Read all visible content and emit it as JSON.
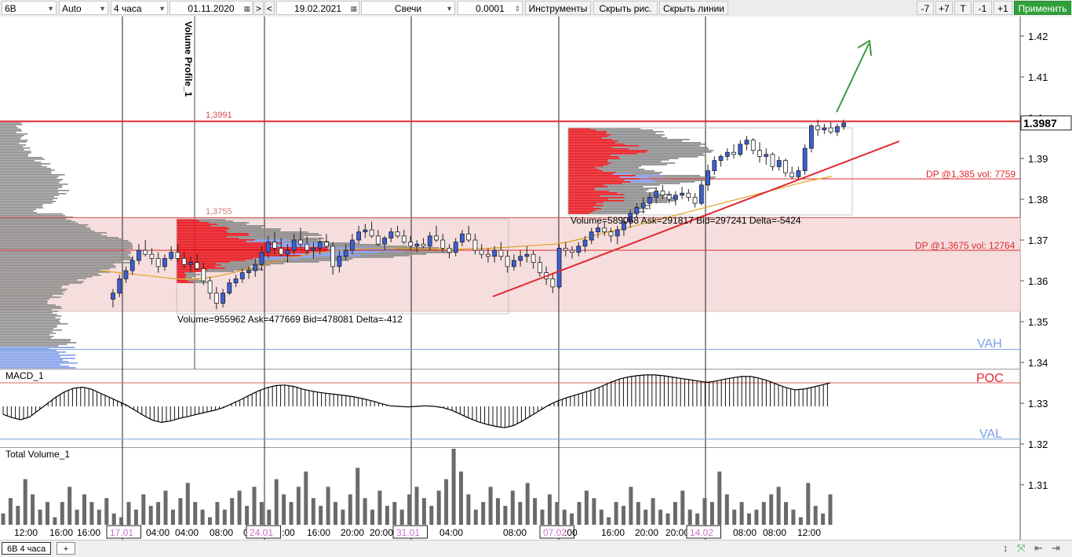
{
  "toolbar": {
    "symbol": "6B",
    "scale": "Auto",
    "timeframe": "4 часа",
    "date_from": "01.11.2020",
    "nav_fwd": ">",
    "nav_back": "<",
    "date_to": "19.02.2021",
    "chart_type": "Свечи",
    "tick_size": "0.0001",
    "instruments": "Инструменты",
    "hide_drawings": "Скрыть рис.",
    "hide_lines": "Скрыть линии",
    "zoom_out7": "-7",
    "zoom_in7": "+7",
    "t_button": "T",
    "minus1": "-1",
    "plus1": "+1",
    "apply": "Применить"
  },
  "bottom": {
    "tab": "6B 4 часа",
    "add_tab": "+"
  },
  "colors": {
    "candle_up": "#3b5fd6",
    "candle_down": "#222222",
    "resistance": "#e0282f",
    "zone_fill": "#f5dedd",
    "ema": "#e0a020",
    "profile_gray": "#8a8a8a",
    "profile_red": "#e8141c",
    "profile_blue": "#7f9be8",
    "trend_arrow": "#3a9a3c",
    "vah_val": "#7aa0e0",
    "apply_green": "#2fa13b"
  },
  "chart_data": {
    "type": "candlestick",
    "symbol": "6B",
    "timeframe": "4 часа",
    "price_axis": {
      "ticks": [
        1.42,
        1.41,
        1.4,
        1.39,
        1.38,
        1.37,
        1.36,
        1.35,
        1.34,
        1.33,
        1.32,
        1.31
      ],
      "tick_labels": [
        "1.42",
        "1.41",
        "1.4",
        "1.39",
        "1.38",
        "1.37",
        "1.36",
        "1.35",
        "1.34",
        "1.33",
        "1.32",
        "1.31"
      ],
      "current_price": "1.3987",
      "range": [
        1.3,
        1.4248
      ]
    },
    "time_axis_labels": [
      "12:00",
      "16:00",
      "16:00",
      "17.01",
      "04:00",
      "04:00",
      "08:00",
      "08:00",
      "24.01",
      ":00",
      "16:00",
      "20:00",
      "20:00",
      "31.01",
      "04:00",
      "08:00",
      "07.02",
      ":00",
      "16:00",
      "20:00",
      "20:00",
      "14.02",
      "08:00",
      "08:00",
      "12:00"
    ],
    "levels": [
      {
        "label": "1,3991",
        "price": 1.3991
      },
      {
        "label": "1,3755",
        "price": 1.3755
      },
      {
        "label": "DP @1,385 vol: 7759",
        "price": 1.385
      },
      {
        "label": "DP @1,3675 vol: 12764",
        "price": 1.3675
      },
      {
        "label": "VAH",
        "price": 1.3432
      },
      {
        "label": "POC",
        "price": 1.335
      },
      {
        "label": "VAL",
        "price": 1.3212
      }
    ],
    "zone": {
      "top": 1.3755,
      "bottom": 1.3525
    },
    "volume_profiles": [
      {
        "label": "Volume=955962  Ask=477669  Bid=478081  Delta=-412"
      },
      {
        "label": "Volume=589058  Ask=291817  Bid=297241  Delta=-5424"
      }
    ],
    "candles": [
      {
        "o": 1.3555,
        "h": 1.358,
        "l": 1.3535,
        "c": 1.357
      },
      {
        "o": 1.357,
        "h": 1.3615,
        "l": 1.356,
        "c": 1.3605
      },
      {
        "o": 1.3605,
        "h": 1.3635,
        "l": 1.3595,
        "c": 1.3625
      },
      {
        "o": 1.3625,
        "h": 1.366,
        "l": 1.3615,
        "c": 1.365
      },
      {
        "o": 1.365,
        "h": 1.369,
        "l": 1.364,
        "c": 1.3675
      },
      {
        "o": 1.3675,
        "h": 1.37,
        "l": 1.366,
        "c": 1.3665
      },
      {
        "o": 1.3665,
        "h": 1.368,
        "l": 1.364,
        "c": 1.3655
      },
      {
        "o": 1.3655,
        "h": 1.367,
        "l": 1.362,
        "c": 1.3635
      },
      {
        "o": 1.3635,
        "h": 1.3665,
        "l": 1.3625,
        "c": 1.3655
      },
      {
        "o": 1.3655,
        "h": 1.3685,
        "l": 1.365,
        "c": 1.367
      },
      {
        "o": 1.367,
        "h": 1.369,
        "l": 1.3645,
        "c": 1.3655
      },
      {
        "o": 1.3655,
        "h": 1.367,
        "l": 1.363,
        "c": 1.364
      },
      {
        "o": 1.364,
        "h": 1.366,
        "l": 1.362,
        "c": 1.3645
      },
      {
        "o": 1.3645,
        "h": 1.3665,
        "l": 1.3625,
        "c": 1.363
      },
      {
        "o": 1.363,
        "h": 1.3645,
        "l": 1.359,
        "c": 1.36
      },
      {
        "o": 1.36,
        "h": 1.361,
        "l": 1.3555,
        "c": 1.357
      },
      {
        "o": 1.357,
        "h": 1.3585,
        "l": 1.353,
        "c": 1.3545
      },
      {
        "o": 1.3545,
        "h": 1.358,
        "l": 1.3535,
        "c": 1.357
      },
      {
        "o": 1.357,
        "h": 1.3605,
        "l": 1.3565,
        "c": 1.3595
      },
      {
        "o": 1.3595,
        "h": 1.3615,
        "l": 1.3585,
        "c": 1.3605
      },
      {
        "o": 1.3605,
        "h": 1.363,
        "l": 1.3595,
        "c": 1.362
      },
      {
        "o": 1.362,
        "h": 1.3635,
        "l": 1.3605,
        "c": 1.3625
      },
      {
        "o": 1.3625,
        "h": 1.3655,
        "l": 1.361,
        "c": 1.364
      },
      {
        "o": 1.364,
        "h": 1.3685,
        "l": 1.3625,
        "c": 1.367
      },
      {
        "o": 1.367,
        "h": 1.371,
        "l": 1.3655,
        "c": 1.3695
      },
      {
        "o": 1.3695,
        "h": 1.372,
        "l": 1.3665,
        "c": 1.368
      },
      {
        "o": 1.368,
        "h": 1.3705,
        "l": 1.366,
        "c": 1.3665
      },
      {
        "o": 1.3665,
        "h": 1.369,
        "l": 1.3645,
        "c": 1.3675
      },
      {
        "o": 1.3675,
        "h": 1.3715,
        "l": 1.3665,
        "c": 1.37
      },
      {
        "o": 1.37,
        "h": 1.373,
        "l": 1.368,
        "c": 1.369
      },
      {
        "o": 1.369,
        "h": 1.371,
        "l": 1.3665,
        "c": 1.3675
      },
      {
        "o": 1.3675,
        "h": 1.3695,
        "l": 1.3655,
        "c": 1.368
      },
      {
        "o": 1.368,
        "h": 1.3705,
        "l": 1.3665,
        "c": 1.3695
      },
      {
        "o": 1.3695,
        "h": 1.3715,
        "l": 1.368,
        "c": 1.3685
      },
      {
        "o": 1.3685,
        "h": 1.3695,
        "l": 1.3615,
        "c": 1.3635
      },
      {
        "o": 1.3635,
        "h": 1.3675,
        "l": 1.362,
        "c": 1.366
      },
      {
        "o": 1.366,
        "h": 1.369,
        "l": 1.365,
        "c": 1.3675
      },
      {
        "o": 1.3675,
        "h": 1.3715,
        "l": 1.3665,
        "c": 1.37
      },
      {
        "o": 1.37,
        "h": 1.3735,
        "l": 1.369,
        "c": 1.372
      },
      {
        "o": 1.372,
        "h": 1.374,
        "l": 1.3705,
        "c": 1.3725
      },
      {
        "o": 1.3725,
        "h": 1.3745,
        "l": 1.3705,
        "c": 1.371
      },
      {
        "o": 1.371,
        "h": 1.3725,
        "l": 1.3685,
        "c": 1.369
      },
      {
        "o": 1.369,
        "h": 1.371,
        "l": 1.3675,
        "c": 1.3705
      },
      {
        "o": 1.3705,
        "h": 1.373,
        "l": 1.3695,
        "c": 1.372
      },
      {
        "o": 1.372,
        "h": 1.3735,
        "l": 1.3705,
        "c": 1.371
      },
      {
        "o": 1.371,
        "h": 1.3725,
        "l": 1.369,
        "c": 1.3695
      },
      {
        "o": 1.3695,
        "h": 1.371,
        "l": 1.3675,
        "c": 1.3685
      },
      {
        "o": 1.3685,
        "h": 1.37,
        "l": 1.367,
        "c": 1.369
      },
      {
        "o": 1.369,
        "h": 1.3705,
        "l": 1.368,
        "c": 1.3685
      },
      {
        "o": 1.3685,
        "h": 1.372,
        "l": 1.3675,
        "c": 1.371
      },
      {
        "o": 1.371,
        "h": 1.3735,
        "l": 1.3695,
        "c": 1.37
      },
      {
        "o": 1.37,
        "h": 1.3715,
        "l": 1.367,
        "c": 1.368
      },
      {
        "o": 1.368,
        "h": 1.369,
        "l": 1.3655,
        "c": 1.367
      },
      {
        "o": 1.367,
        "h": 1.3705,
        "l": 1.366,
        "c": 1.3695
      },
      {
        "o": 1.3695,
        "h": 1.3725,
        "l": 1.3685,
        "c": 1.3715
      },
      {
        "o": 1.3715,
        "h": 1.3735,
        "l": 1.3695,
        "c": 1.37
      },
      {
        "o": 1.37,
        "h": 1.3715,
        "l": 1.3665,
        "c": 1.3675
      },
      {
        "o": 1.3675,
        "h": 1.369,
        "l": 1.3655,
        "c": 1.3665
      },
      {
        "o": 1.3665,
        "h": 1.368,
        "l": 1.3645,
        "c": 1.366
      },
      {
        "o": 1.366,
        "h": 1.3685,
        "l": 1.3645,
        "c": 1.3675
      },
      {
        "o": 1.3675,
        "h": 1.3695,
        "l": 1.365,
        "c": 1.366
      },
      {
        "o": 1.366,
        "h": 1.3675,
        "l": 1.362,
        "c": 1.3635
      },
      {
        "o": 1.3635,
        "h": 1.3665,
        "l": 1.3625,
        "c": 1.365
      },
      {
        "o": 1.365,
        "h": 1.3675,
        "l": 1.3635,
        "c": 1.366
      },
      {
        "o": 1.366,
        "h": 1.3685,
        "l": 1.3645,
        "c": 1.3665
      },
      {
        "o": 1.3665,
        "h": 1.3675,
        "l": 1.363,
        "c": 1.3645
      },
      {
        "o": 1.3645,
        "h": 1.366,
        "l": 1.361,
        "c": 1.362
      },
      {
        "o": 1.362,
        "h": 1.3635,
        "l": 1.359,
        "c": 1.3605
      },
      {
        "o": 1.3605,
        "h": 1.362,
        "l": 1.357,
        "c": 1.3585
      },
      {
        "o": 1.3585,
        "h": 1.369,
        "l": 1.358,
        "c": 1.368
      },
      {
        "o": 1.368,
        "h": 1.3695,
        "l": 1.366,
        "c": 1.3675
      },
      {
        "o": 1.3675,
        "h": 1.3685,
        "l": 1.3655,
        "c": 1.367
      },
      {
        "o": 1.367,
        "h": 1.3695,
        "l": 1.366,
        "c": 1.3685
      },
      {
        "o": 1.3685,
        "h": 1.371,
        "l": 1.367,
        "c": 1.37
      },
      {
        "o": 1.37,
        "h": 1.373,
        "l": 1.369,
        "c": 1.372
      },
      {
        "o": 1.372,
        "h": 1.374,
        "l": 1.3705,
        "c": 1.373
      },
      {
        "o": 1.373,
        "h": 1.3745,
        "l": 1.371,
        "c": 1.372
      },
      {
        "o": 1.372,
        "h": 1.373,
        "l": 1.3695,
        "c": 1.371
      },
      {
        "o": 1.371,
        "h": 1.3735,
        "l": 1.369,
        "c": 1.3725
      },
      {
        "o": 1.3725,
        "h": 1.3755,
        "l": 1.371,
        "c": 1.3745
      },
      {
        "o": 1.3745,
        "h": 1.3775,
        "l": 1.373,
        "c": 1.3765
      },
      {
        "o": 1.3765,
        "h": 1.379,
        "l": 1.3755,
        "c": 1.378
      },
      {
        "o": 1.378,
        "h": 1.3805,
        "l": 1.3765,
        "c": 1.379
      },
      {
        "o": 1.379,
        "h": 1.3815,
        "l": 1.3775,
        "c": 1.3805
      },
      {
        "o": 1.3805,
        "h": 1.383,
        "l": 1.379,
        "c": 1.382
      },
      {
        "o": 1.382,
        "h": 1.3835,
        "l": 1.38,
        "c": 1.381
      },
      {
        "o": 1.381,
        "h": 1.382,
        "l": 1.379,
        "c": 1.38
      },
      {
        "o": 1.38,
        "h": 1.382,
        "l": 1.3785,
        "c": 1.381
      },
      {
        "o": 1.381,
        "h": 1.383,
        "l": 1.38,
        "c": 1.3815
      },
      {
        "o": 1.3815,
        "h": 1.3825,
        "l": 1.3795,
        "c": 1.3805
      },
      {
        "o": 1.3805,
        "h": 1.3815,
        "l": 1.378,
        "c": 1.379
      },
      {
        "o": 1.379,
        "h": 1.3845,
        "l": 1.3785,
        "c": 1.3835
      },
      {
        "o": 1.3835,
        "h": 1.3885,
        "l": 1.382,
        "c": 1.387
      },
      {
        "o": 1.387,
        "h": 1.3905,
        "l": 1.386,
        "c": 1.3895
      },
      {
        "o": 1.3895,
        "h": 1.391,
        "l": 1.388,
        "c": 1.3905
      },
      {
        "o": 1.3905,
        "h": 1.3925,
        "l": 1.3895,
        "c": 1.3915
      },
      {
        "o": 1.3915,
        "h": 1.3935,
        "l": 1.39,
        "c": 1.391
      },
      {
        "o": 1.391,
        "h": 1.3945,
        "l": 1.3905,
        "c": 1.3935
      },
      {
        "o": 1.3935,
        "h": 1.3955,
        "l": 1.392,
        "c": 1.3945
      },
      {
        "o": 1.3945,
        "h": 1.395,
        "l": 1.391,
        "c": 1.392
      },
      {
        "o": 1.392,
        "h": 1.394,
        "l": 1.389,
        "c": 1.3905
      },
      {
        "o": 1.3905,
        "h": 1.3925,
        "l": 1.3885,
        "c": 1.391
      },
      {
        "o": 1.391,
        "h": 1.3915,
        "l": 1.387,
        "c": 1.388
      },
      {
        "o": 1.388,
        "h": 1.3905,
        "l": 1.387,
        "c": 1.3895
      },
      {
        "o": 1.3895,
        "h": 1.39,
        "l": 1.3855,
        "c": 1.3865
      },
      {
        "o": 1.3865,
        "h": 1.388,
        "l": 1.385,
        "c": 1.3855
      },
      {
        "o": 1.3855,
        "h": 1.388,
        "l": 1.385,
        "c": 1.387
      },
      {
        "o": 1.387,
        "h": 1.3935,
        "l": 1.386,
        "c": 1.3925
      },
      {
        "o": 1.3925,
        "h": 1.3985,
        "l": 1.3915,
        "c": 1.398
      },
      {
        "o": 1.398,
        "h": 1.3995,
        "l": 1.3955,
        "c": 1.397
      },
      {
        "o": 1.397,
        "h": 1.3985,
        "l": 1.396,
        "c": 1.3975
      },
      {
        "o": 1.3975,
        "h": 1.399,
        "l": 1.396,
        "c": 1.3965
      },
      {
        "o": 1.3965,
        "h": 1.3985,
        "l": 1.3955,
        "c": 1.3978
      },
      {
        "o": 1.3978,
        "h": 1.3995,
        "l": 1.397,
        "c": 1.3987
      }
    ],
    "ema": [
      1.3625,
      1.3622,
      1.3618,
      1.3615,
      1.3612,
      1.3608,
      1.3605,
      1.3604,
      1.3606,
      1.361,
      1.3616,
      1.3624,
      1.3632,
      1.364,
      1.3648,
      1.3656,
      1.3662,
      1.3668,
      1.3672,
      1.3675,
      1.3677,
      1.3679,
      1.368,
      1.368,
      1.368,
      1.3679,
      1.3678,
      1.3677,
      1.3677,
      1.3678,
      1.3679,
      1.368,
      1.3682,
      1.3684,
      1.3686,
      1.3688,
      1.369,
      1.3695,
      1.3702,
      1.371,
      1.3718,
      1.3725,
      1.3732,
      1.374,
      1.3748,
      1.3756,
      1.3764,
      1.3772,
      1.378,
      1.3788,
      1.3796,
      1.3804,
      1.3812,
      1.382,
      1.3828,
      1.3836,
      1.3844,
      1.385,
      1.3856
    ],
    "macd": {
      "title": "MACD_1",
      "values": [
        -0.3,
        -0.42,
        -0.5,
        -0.4,
        -0.15,
        0.1,
        0.35,
        0.55,
        0.68,
        0.72,
        0.65,
        0.5,
        0.35,
        0.2,
        0.05,
        -0.15,
        -0.35,
        -0.52,
        -0.6,
        -0.55,
        -0.45,
        -0.38,
        -0.3,
        -0.22,
        -0.15,
        -0.05,
        0.1,
        0.25,
        0.42,
        0.58,
        0.7,
        0.78,
        0.8,
        0.75,
        0.65,
        0.58,
        0.52,
        0.48,
        0.44,
        0.4,
        0.35,
        0.28,
        0.2,
        0.1,
        0.02,
        0.0,
        -0.02,
        0.0,
        0.02,
        0.0,
        -0.05,
        -0.15,
        -0.3,
        -0.45,
        -0.58,
        -0.68,
        -0.75,
        -0.8,
        -0.72,
        -0.55,
        -0.35,
        -0.15,
        0.05,
        0.2,
        0.32,
        0.42,
        0.52,
        0.62,
        0.75,
        0.9,
        1.02,
        1.1,
        1.15,
        1.18,
        1.18,
        1.15,
        1.1,
        1.05,
        1.0,
        0.95,
        0.9,
        0.95,
        1.02,
        1.08,
        1.12,
        1.12,
        1.05,
        0.95,
        0.82,
        0.7,
        0.62,
        0.65,
        0.72,
        0.8,
        0.88
      ]
    },
    "volume": {
      "title": "Total Volume_1",
      "values": [
        0.15,
        0.35,
        0.25,
        0.6,
        0.4,
        0.2,
        0.3,
        0.1,
        0.3,
        0.5,
        0.2,
        0.4,
        0.3,
        0.2,
        0.35,
        0.15,
        0.1,
        0.3,
        0.2,
        0.4,
        0.25,
        0.3,
        0.45,
        0.2,
        0.35,
        0.55,
        0.3,
        0.2,
        0.1,
        0.3,
        0.2,
        0.35,
        0.45,
        0.25,
        0.5,
        0.3,
        0.2,
        0.6,
        0.4,
        0.3,
        0.5,
        0.7,
        0.35,
        0.25,
        0.5,
        0.3,
        0.2,
        0.4,
        0.75,
        0.35,
        0.2,
        0.45,
        0.25,
        0.3,
        0.2,
        0.4,
        0.5,
        0.35,
        0.25,
        0.45,
        0.6,
        1.0,
        0.7,
        0.4,
        0.2,
        0.3,
        0.5,
        0.35,
        0.25,
        0.45,
        0.3,
        0.55,
        0.35,
        0.2,
        0.4,
        0.3,
        0.2,
        0.15,
        0.3,
        0.45,
        0.35,
        0.2,
        0.1,
        0.3,
        0.25,
        0.5,
        0.3,
        0.2,
        0.35,
        0.2,
        0.15,
        0.3,
        0.45,
        0.2,
        0.15,
        0.35,
        0.3,
        0.7,
        0.4,
        0.2,
        0.3,
        0.15,
        0.2,
        0.3,
        0.4,
        0.5,
        0.3,
        0.2,
        0.1,
        0.55,
        0.25,
        0.15,
        0.4
      ]
    },
    "profile_labels": {
      "vertical": "Volume Profile_1"
    }
  }
}
